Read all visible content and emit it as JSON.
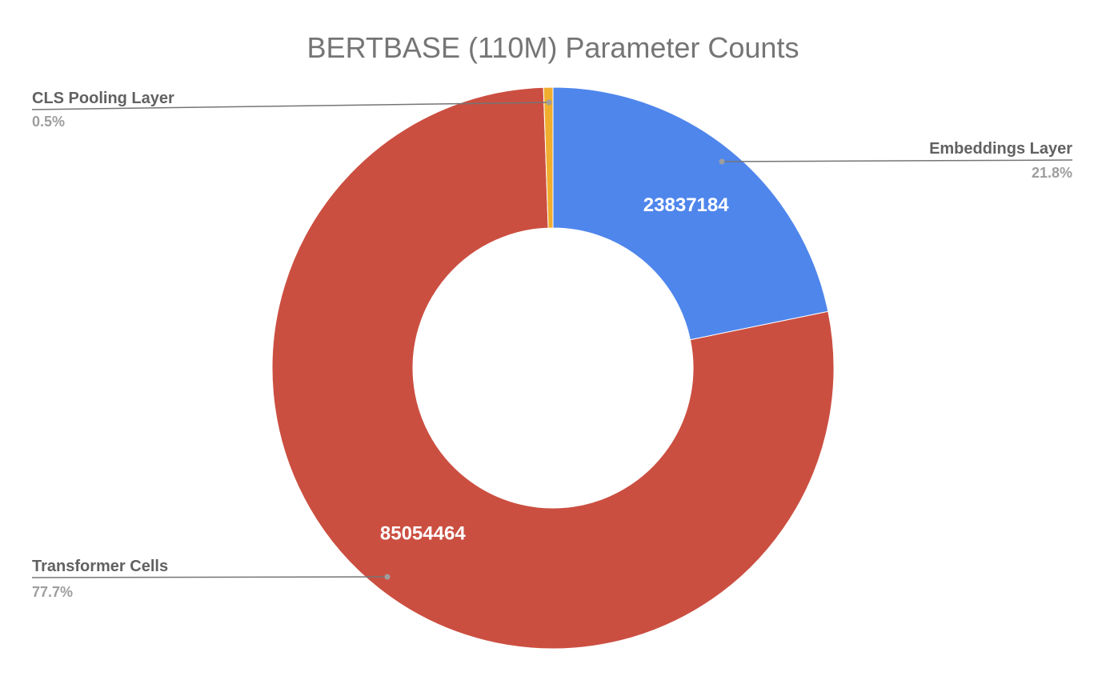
{
  "chart_data": {
    "type": "pie",
    "donut": true,
    "title": "BERTBASE (110M) Parameter Counts",
    "slices": [
      {
        "label": "Embeddings Layer",
        "value": 23837184,
        "value_label": "23837184",
        "percent_label": "21.8%",
        "color": "#4f86ec"
      },
      {
        "label": "Transformer Cells",
        "value": 85054464,
        "value_label": "85054464",
        "percent_label": "77.7%",
        "color": "#cb4f41"
      },
      {
        "label": "CLS Pooling Layer",
        "value": 590592,
        "value_label": "",
        "percent_label": "0.5%",
        "color": "#f0ad2e"
      }
    ]
  }
}
